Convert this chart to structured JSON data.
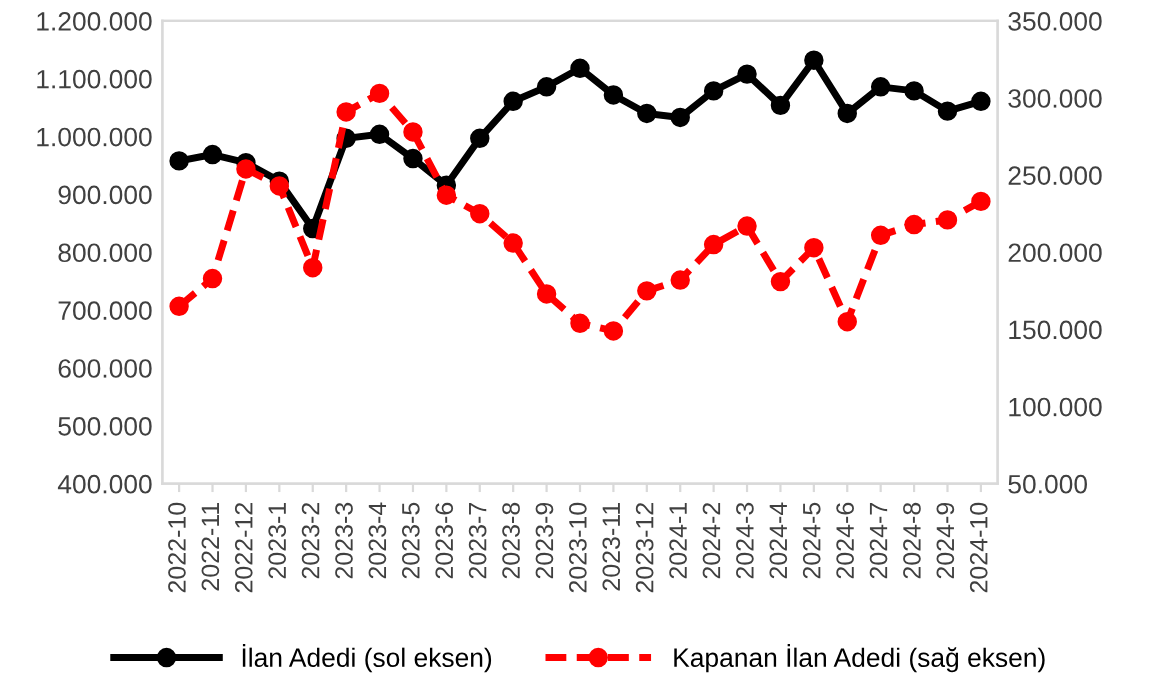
{
  "chart_data": {
    "type": "line",
    "categories": [
      "2022-10",
      "2022-11",
      "2022-12",
      "2023-1",
      "2023-2",
      "2023-3",
      "2023-4",
      "2023-5",
      "2023-6",
      "2023-7",
      "2023-8",
      "2023-9",
      "2023-10",
      "2023-11",
      "2023-12",
      "2024-1",
      "2024-2",
      "2024-3",
      "2024-4",
      "2024-5",
      "2024-6",
      "2024-7",
      "2024-8",
      "2024-9",
      "2024-10"
    ],
    "series": [
      {
        "name": "İlan Adedi (sol eksen)",
        "color": "#000000",
        "line_style": "solid",
        "values": [
          958000,
          969000,
          955000,
          923000,
          841000,
          997000,
          1004000,
          962000,
          916000,
          997000,
          1061000,
          1086000,
          1118000,
          1072000,
          1040000,
          1033000,
          1079000,
          1108000,
          1054000,
          1132000,
          1040000,
          1086000,
          1079000,
          1044000,
          1061000
        ]
      },
      {
        "name": "Kapanan İlan Adedi (sağ eksen)",
        "color": "#ff0000",
        "line_style": "dashed",
        "axis": "y2",
        "values": [
          165000,
          183000,
          254000,
          243000,
          190000,
          291000,
          303000,
          278000,
          237000,
          225000,
          206000,
          173000,
          154000,
          149000,
          175000,
          182000,
          205000,
          217000,
          181000,
          203000,
          155000,
          211000,
          218000,
          221000,
          233000
        ]
      }
    ],
    "ylim": [
      400000,
      1200000
    ],
    "yticks": [
      {
        "value": 400000,
        "label": "400.000"
      },
      {
        "value": 500000,
        "label": "500.000"
      },
      {
        "value": 600000,
        "label": "600.000"
      },
      {
        "value": 700000,
        "label": "700.000"
      },
      {
        "value": 800000,
        "label": "800.000"
      },
      {
        "value": 900000,
        "label": "900.000"
      },
      {
        "value": 1000000,
        "label": "1.000.000"
      },
      {
        "value": 1100000,
        "label": "1.100.000"
      },
      {
        "value": 1200000,
        "label": "1.200.000"
      }
    ],
    "y2lim": [
      50000,
      350000
    ],
    "y2ticks": [
      {
        "value": 50000,
        "label": "50.000"
      },
      {
        "value": 100000,
        "label": "100.000"
      },
      {
        "value": 150000,
        "label": "150.000"
      },
      {
        "value": 200000,
        "label": "200.000"
      },
      {
        "value": 250000,
        "label": "250.000"
      },
      {
        "value": 300000,
        "label": "300.000"
      },
      {
        "value": 350000,
        "label": "350.000"
      }
    ],
    "marker": "circle",
    "grid": false,
    "legend": "bottom"
  }
}
